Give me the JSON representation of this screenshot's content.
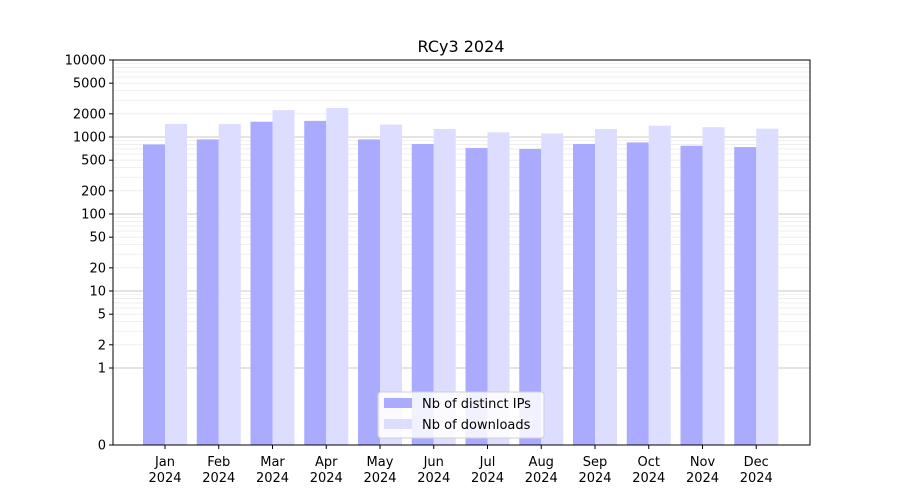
{
  "chart_data": {
    "type": "bar",
    "title": "RCy3 2024",
    "xlabel": "",
    "ylabel": "",
    "yscale": "symlog",
    "ylim": [
      0,
      10000
    ],
    "yticks": [
      0,
      1,
      2,
      5,
      10,
      20,
      50,
      100,
      200,
      500,
      1000,
      2000,
      5000,
      10000
    ],
    "grid": true,
    "legend_position": "bottom-center",
    "categories": [
      [
        "Jan",
        "2024"
      ],
      [
        "Feb",
        "2024"
      ],
      [
        "Mar",
        "2024"
      ],
      [
        "Apr",
        "2024"
      ],
      [
        "May",
        "2024"
      ],
      [
        "Jun",
        "2024"
      ],
      [
        "Jul",
        "2024"
      ],
      [
        "Aug",
        "2024"
      ],
      [
        "Sep",
        "2024"
      ],
      [
        "Oct",
        "2024"
      ],
      [
        "Nov",
        "2024"
      ],
      [
        "Dec",
        "2024"
      ]
    ],
    "series": [
      {
        "name": "Nb of distinct IPs",
        "color": "#aaaaff",
        "values": [
          800,
          930,
          1580,
          1620,
          930,
          810,
          720,
          700,
          810,
          850,
          770,
          740
        ]
      },
      {
        "name": "Nb of downloads",
        "color": "#ddddff",
        "values": [
          1480,
          1480,
          2230,
          2380,
          1450,
          1270,
          1150,
          1110,
          1270,
          1400,
          1340,
          1280
        ]
      }
    ]
  }
}
